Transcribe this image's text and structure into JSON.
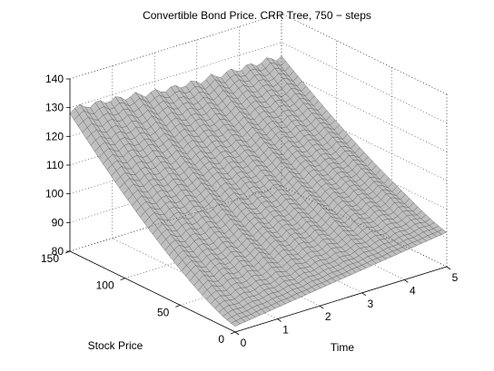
{
  "chart_data": {
    "type": "surface",
    "title": "Convertible Bond Price. CRR Tree, 750 − steps",
    "xlabel": "Time",
    "ylabel": "Stock Price",
    "zlabel": "",
    "x_ticks": [
      "0",
      "1",
      "2",
      "3",
      "4",
      "5"
    ],
    "y_ticks": [
      "0",
      "50",
      "100",
      "150"
    ],
    "z_ticks": [
      "80",
      "90",
      "100",
      "110",
      "120",
      "130",
      "140"
    ],
    "xlim": [
      0,
      5
    ],
    "ylim": [
      0,
      150
    ],
    "zlim": [
      80,
      140
    ],
    "grid": true,
    "box": true,
    "surface_color": "#bfbfbf",
    "mesh_color": "#505050",
    "surface_samples": {
      "stock_price": [
        0,
        50,
        100,
        150
      ],
      "time": [
        0,
        1,
        2,
        3,
        4,
        5
      ],
      "price_at_stock_0": [
        82,
        84,
        86,
        88,
        90,
        92
      ],
      "price_at_stock_150": [
        128,
        127,
        125,
        124,
        124,
        124
      ]
    }
  }
}
